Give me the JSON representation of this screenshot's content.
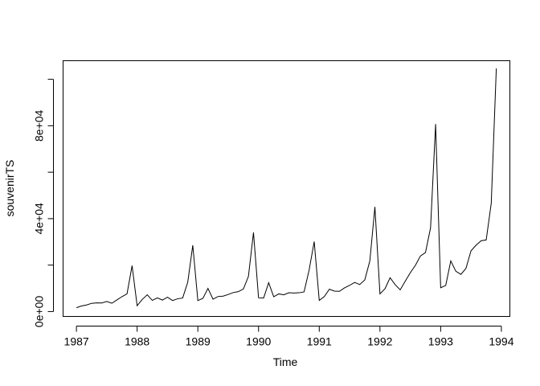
{
  "chart_data": {
    "type": "line",
    "title": "",
    "xlabel": "Time",
    "ylabel": "souvenirTS",
    "xlim": [
      1986.78,
      1994.14
    ],
    "ylim": [
      -2100,
      108000
    ],
    "grid": false,
    "legend": "none",
    "x_ticks": [
      1987,
      1988,
      1989,
      1990,
      1991,
      1992,
      1993,
      1994
    ],
    "x_tick_labels": [
      "1987",
      "1988",
      "1989",
      "1990",
      "1991",
      "1992",
      "1993",
      "1994"
    ],
    "y_ticks": [
      0,
      20000,
      40000,
      60000,
      80000,
      100000
    ],
    "y_tick_labels": [
      "0e+00",
      "",
      "4e+04",
      "",
      "8e+04",
      ""
    ],
    "series": [
      {
        "start": 1987,
        "frequency": 12,
        "values": [
          1665,
          2398,
          2841,
          3547,
          3753,
          3715,
          4350,
          3566,
          5022,
          6423,
          7600,
          19756,
          2500,
          5198,
          7225,
          4806,
          5901,
          4951,
          6179,
          4752,
          5496,
          5835,
          12600,
          28542,
          4717,
          5702,
          9957,
          5305,
          6492,
          6631,
          7350,
          8177,
          8574,
          9690,
          15152,
          34062,
          5921,
          5815,
          12422,
          6370,
          7609,
          7225,
          8121,
          7979,
          8093,
          8476,
          17915,
          30114,
          4826,
          6470,
          9638,
          8821,
          8722,
          10209,
          11276,
          12552,
          11637,
          13607,
          21822,
          45061,
          7615,
          9850,
          14558,
          11587,
          9332,
          13082,
          16732,
          19888,
          23933,
          25391,
          36024,
          80721,
          10243,
          11266,
          21826,
          17357,
          15997,
          18601,
          26155,
          28586,
          30505,
          30821,
          46634,
          104661
        ]
      }
    ]
  },
  "colors": {
    "line": "#000000",
    "axis": "#000000",
    "background": "#ffffff"
  }
}
